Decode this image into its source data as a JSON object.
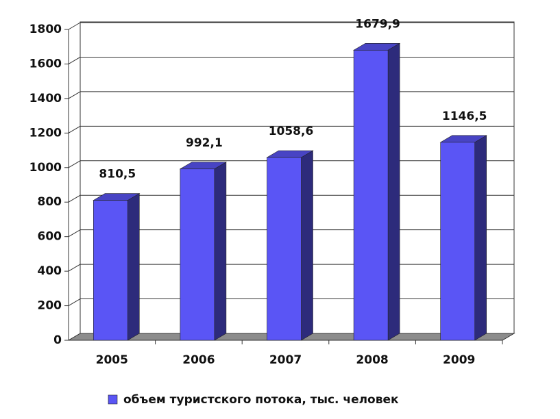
{
  "chart_data": {
    "type": "bar3d",
    "categories": [
      "2005",
      "2006",
      "2007",
      "2008",
      "2009"
    ],
    "series": [
      {
        "name": "объем туристского потока, тыс. человек",
        "color": "#5a55f5",
        "values": [
          810.5,
          992.1,
          1058.6,
          1679.9,
          1146.5
        ],
        "value_labels": [
          "810,5",
          "992,1",
          "1058,6",
          "1679,9",
          "1146,5"
        ]
      }
    ],
    "ylim": [
      0,
      1800
    ],
    "yticks": [
      0,
      200,
      400,
      600,
      800,
      1000,
      1200,
      1400,
      1600,
      1800
    ],
    "grid": true,
    "legend": "bottom"
  }
}
